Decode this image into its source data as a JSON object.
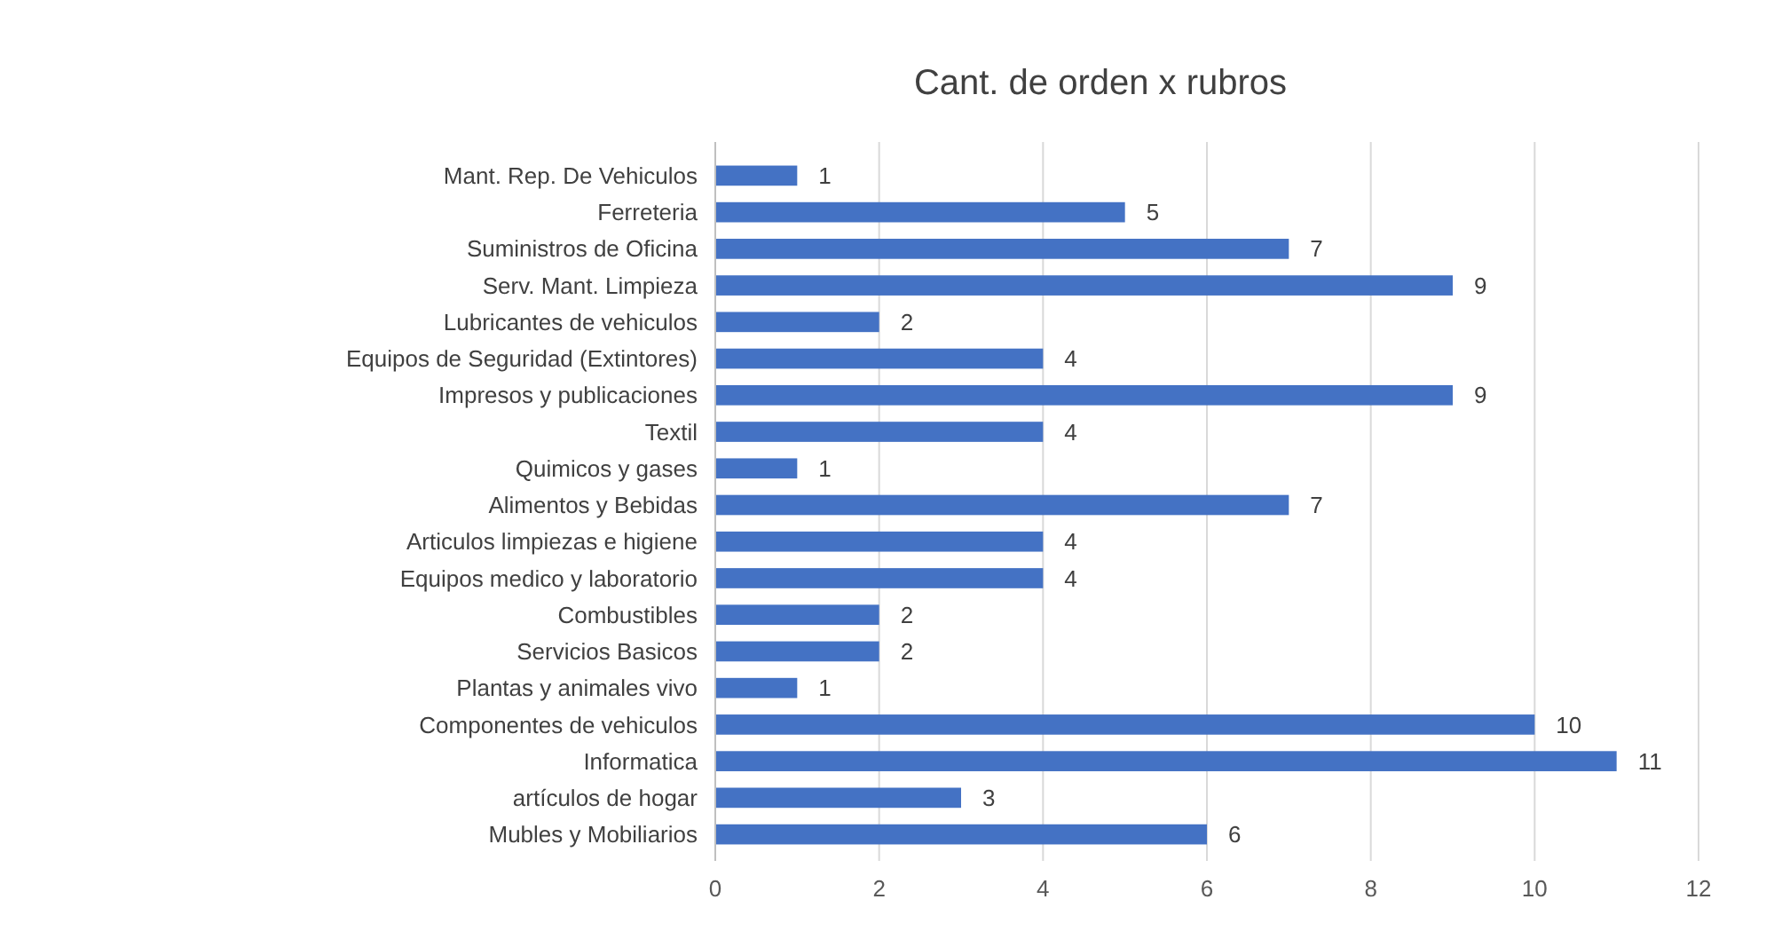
{
  "chart_data": {
    "type": "bar",
    "orientation": "horizontal",
    "title": "Cant. de orden x rubros",
    "categories": [
      "Mant. Rep. De Vehiculos",
      "Ferreteria",
      "Suministros de Oficina",
      "Serv. Mant. Limpieza",
      "Lubricantes de vehiculos",
      "Equipos de Seguridad (Extintores)",
      "Impresos y publicaciones",
      "Textil",
      "Quimicos y gases",
      "Alimentos y Bebidas",
      "Articulos limpiezas e higiene",
      "Equipos medico y laboratorio",
      "Combustibles",
      "Servicios Basicos",
      "Plantas y animales vivo",
      "Componentes de vehiculos",
      "Informatica",
      "artículos de hogar",
      "Mubles y Mobiliarios"
    ],
    "values": [
      1,
      5,
      7,
      9,
      2,
      4,
      9,
      4,
      1,
      7,
      4,
      4,
      2,
      2,
      1,
      10,
      11,
      3,
      6
    ],
    "color": "#4472c4",
    "xlim": [
      0,
      12
    ],
    "xticks": [
      0,
      2,
      4,
      6,
      8,
      10,
      12
    ],
    "grid": "x",
    "data_labels": true
  }
}
